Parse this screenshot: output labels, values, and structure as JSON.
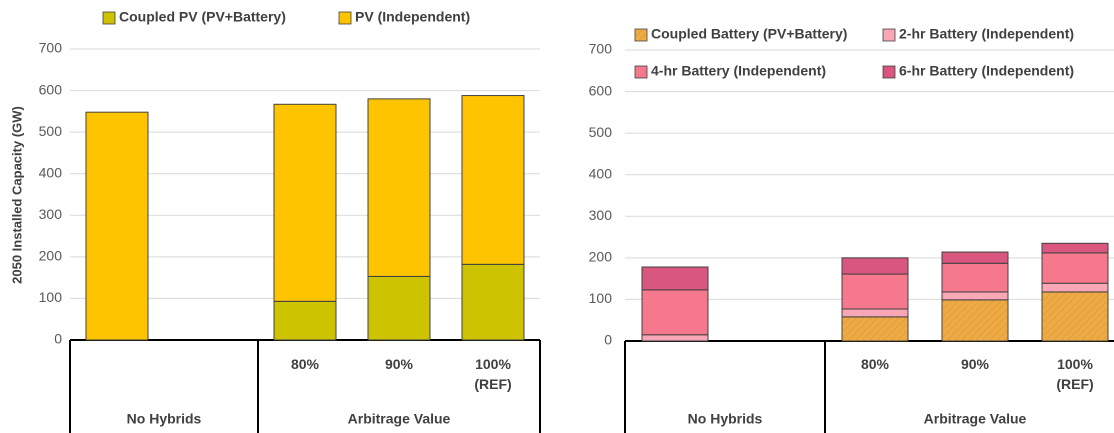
{
  "chart_data": [
    {
      "type": "bar",
      "stacked": true,
      "y_label": "2050 Installed Capacity (GW)",
      "groups": [
        {
          "label": "No Hybrids",
          "categories": [
            null
          ]
        },
        {
          "label": "Arbitrage Value",
          "categories": [
            "80%",
            "90%",
            "100%\n(REF)"
          ]
        }
      ],
      "series": [
        {
          "name": "Coupled PV (PV+Battery)",
          "color": "#cdc300",
          "values": [
            0,
            93,
            153,
            182
          ]
        },
        {
          "name": "PV (Independent)",
          "color": "#ffc400",
          "values": [
            548,
            474,
            427,
            406
          ]
        }
      ],
      "ylim": [
        0,
        700
      ],
      "yticks": [
        0,
        100,
        200,
        300,
        400,
        500,
        600,
        700
      ],
      "grid": true
    },
    {
      "type": "bar",
      "stacked": true,
      "groups": [
        {
          "label": "No Hybrids",
          "categories": [
            null
          ]
        },
        {
          "label": "Arbitrage Value",
          "categories": [
            "80%",
            "90%",
            "100%\n(REF)"
          ]
        }
      ],
      "series": [
        {
          "name": "Coupled Battery (PV+Battery)",
          "color": "#eeab45",
          "hatch": true,
          "values": [
            0,
            58,
            99,
            118
          ]
        },
        {
          "name": "2-hr Battery (Independent)",
          "color": "#f9a6b6",
          "values": [
            15,
            19,
            19,
            21
          ]
        },
        {
          "name": "4-hr Battery (Independent)",
          "color": "#f5788c",
          "values": [
            108,
            84,
            69,
            73
          ]
        },
        {
          "name": "6-hr Battery (Independent)",
          "color": "#d9577f",
          "values": [
            55,
            39,
            27,
            23
          ]
        }
      ],
      "ylim": [
        0,
        700
      ],
      "yticks": [
        0,
        100,
        200,
        300,
        400,
        500,
        600,
        700
      ],
      "grid": true
    }
  ]
}
